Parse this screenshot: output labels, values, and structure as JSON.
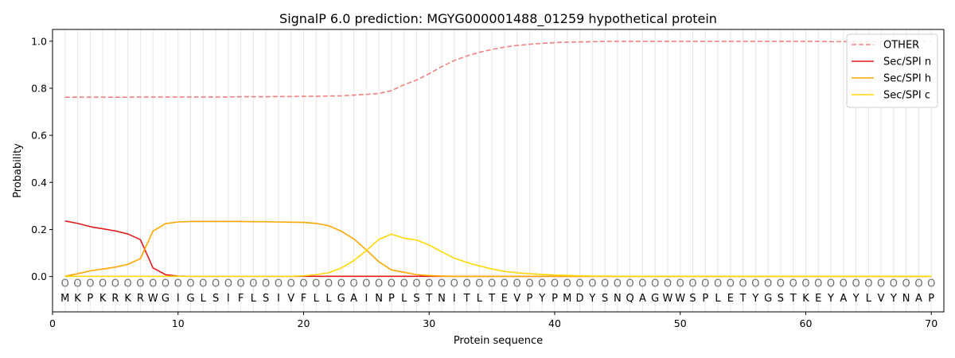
{
  "chart_data": {
    "type": "line",
    "title": "SignalP 6.0 prediction: MGYG000001488_01259 hypothetical protein",
    "xlabel": "Protein sequence",
    "ylabel": "Probability",
    "xlim": [
      0,
      71
    ],
    "ylim": [
      -0.15,
      1.05
    ],
    "x_ticks": [
      0,
      10,
      20,
      30,
      40,
      50,
      60,
      70
    ],
    "y_ticks": [
      0.0,
      0.2,
      0.4,
      0.6,
      0.8,
      1.0
    ],
    "x_tick_labels": [
      "0",
      "10",
      "20",
      "30",
      "40",
      "50",
      "60",
      "70"
    ],
    "y_tick_labels": [
      "0.0",
      "0.2",
      "0.4",
      "0.6",
      "0.8",
      "1.0"
    ],
    "grid": "vertical lines at each residue",
    "legend_position": "top-right",
    "sequence": [
      "M",
      "K",
      "P",
      "K",
      "R",
      "K",
      "R",
      "W",
      "G",
      "I",
      "G",
      "L",
      "S",
      "I",
      "F",
      "L",
      "S",
      "I",
      "V",
      "F",
      "L",
      "L",
      "G",
      "A",
      "I",
      "N",
      "P",
      "L",
      "S",
      "T",
      "N",
      "I",
      "T",
      "L",
      "T",
      "E",
      "V",
      "P",
      "Y",
      "P",
      "M",
      "D",
      "Y",
      "S",
      "N",
      "Q",
      "A",
      "G",
      "W",
      "W",
      "S",
      "P",
      "L",
      "E",
      "T",
      "Y",
      "G",
      "S",
      "T",
      "K",
      "E",
      "Y",
      "A",
      "Y",
      "L",
      "V",
      "Y",
      "N",
      "A",
      "P"
    ],
    "prediction": [
      "O",
      "O",
      "O",
      "O",
      "O",
      "O",
      "O",
      "O",
      "O",
      "O",
      "O",
      "O",
      "O",
      "O",
      "O",
      "O",
      "O",
      "O",
      "O",
      "O",
      "O",
      "O",
      "O",
      "O",
      "O",
      "O",
      "O",
      "O",
      "O",
      "O",
      "O",
      "O",
      "O",
      "O",
      "O",
      "O",
      "O",
      "O",
      "O",
      "O",
      "O",
      "O",
      "O",
      "O",
      "O",
      "O",
      "O",
      "O",
      "O",
      "O",
      "O",
      "O",
      "O",
      "O",
      "O",
      "O",
      "O",
      "O",
      "O",
      "O",
      "O",
      "O",
      "O",
      "O",
      "O",
      "O",
      "O",
      "O",
      "O",
      "O"
    ],
    "x": [
      1,
      2,
      3,
      4,
      5,
      6,
      7,
      8,
      9,
      10,
      11,
      12,
      13,
      14,
      15,
      16,
      17,
      18,
      19,
      20,
      21,
      22,
      23,
      24,
      25,
      26,
      27,
      28,
      29,
      30,
      31,
      32,
      33,
      34,
      35,
      36,
      37,
      38,
      39,
      40,
      41,
      42,
      43,
      44,
      45,
      46,
      47,
      48,
      49,
      50,
      51,
      52,
      53,
      54,
      55,
      56,
      57,
      58,
      59,
      60,
      61,
      62,
      63,
      64,
      65,
      66,
      67,
      68,
      69,
      70
    ],
    "series": [
      {
        "name": "OTHER",
        "color": "#f08080",
        "dash": true,
        "values": [
          0.762,
          0.762,
          0.762,
          0.762,
          0.762,
          0.762,
          0.763,
          0.763,
          0.763,
          0.763,
          0.763,
          0.763,
          0.763,
          0.763,
          0.764,
          0.764,
          0.764,
          0.765,
          0.765,
          0.766,
          0.766,
          0.767,
          0.768,
          0.771,
          0.774,
          0.778,
          0.79,
          0.815,
          0.835,
          0.862,
          0.892,
          0.918,
          0.937,
          0.953,
          0.965,
          0.975,
          0.982,
          0.987,
          0.991,
          0.994,
          0.996,
          0.997,
          0.998,
          0.999,
          0.999,
          0.999,
          0.999,
          0.999,
          0.999,
          0.999,
          0.999,
          0.999,
          0.999,
          0.999,
          0.999,
          0.999,
          0.999,
          0.999,
          0.999,
          0.999,
          0.999,
          0.998,
          0.998,
          0.998,
          0.998,
          0.998,
          0.998,
          0.998,
          0.998,
          0.998
        ]
      },
      {
        "name": "Sec/SPI n",
        "color": "#e31a1c",
        "dash": false,
        "values": [
          0.236,
          0.226,
          0.212,
          0.203,
          0.194,
          0.181,
          0.157,
          0.037,
          0.008,
          0.002,
          0.001,
          0.001,
          0.001,
          0.001,
          0.001,
          0.001,
          0.001,
          0.001,
          0.001,
          0.001,
          0.001,
          0.001,
          0.001,
          0.001,
          0.001,
          0.001,
          0.001,
          0.001,
          0.001,
          0.001,
          0.001,
          0.001,
          0.001,
          0.001,
          0.001,
          0.001,
          0.001,
          0.001,
          0.001,
          0.001,
          0.001,
          0.001,
          0.001,
          0.001,
          0.001,
          0.001,
          0.001,
          0.001,
          0.001,
          0.001,
          0.001,
          0.001,
          0.001,
          0.001,
          0.001,
          0.001,
          0.001,
          0.001,
          0.001,
          0.001,
          0.001,
          0.001,
          0.001,
          0.001,
          0.001,
          0.001,
          0.001,
          0.001,
          0.001,
          0.001
        ]
      },
      {
        "name": "Sec/SPI h",
        "color": "#ffa500",
        "dash": false,
        "values": [
          0.002,
          0.012,
          0.024,
          0.032,
          0.04,
          0.052,
          0.076,
          0.193,
          0.225,
          0.232,
          0.234,
          0.234,
          0.234,
          0.234,
          0.234,
          0.233,
          0.233,
          0.232,
          0.231,
          0.23,
          0.226,
          0.216,
          0.193,
          0.16,
          0.113,
          0.063,
          0.028,
          0.018,
          0.008,
          0.004,
          0.002,
          0.001,
          0.001,
          0.001,
          0.001,
          0.001,
          0.001,
          0.001,
          0.001,
          0.001,
          0.001,
          0.001,
          0.001,
          0.001,
          0.001,
          0.001,
          0.001,
          0.001,
          0.001,
          0.001,
          0.001,
          0.001,
          0.001,
          0.001,
          0.001,
          0.001,
          0.001,
          0.001,
          0.001,
          0.001,
          0.001,
          0.001,
          0.001,
          0.001,
          0.001,
          0.001,
          0.001,
          0.001,
          0.001,
          0.001
        ]
      },
      {
        "name": "Sec/SPI c",
        "color": "#ffd700",
        "dash": false,
        "values": [
          0.001,
          0.001,
          0.001,
          0.001,
          0.001,
          0.001,
          0.001,
          0.001,
          0.001,
          0.001,
          0.001,
          0.001,
          0.001,
          0.001,
          0.001,
          0.001,
          0.001,
          0.001,
          0.001,
          0.003,
          0.008,
          0.016,
          0.036,
          0.068,
          0.11,
          0.158,
          0.18,
          0.163,
          0.155,
          0.134,
          0.105,
          0.078,
          0.06,
          0.045,
          0.032,
          0.022,
          0.016,
          0.012,
          0.009,
          0.006,
          0.005,
          0.003,
          0.002,
          0.002,
          0.001,
          0.001,
          0.001,
          0.001,
          0.001,
          0.001,
          0.001,
          0.001,
          0.001,
          0.001,
          0.001,
          0.001,
          0.001,
          0.001,
          0.001,
          0.001,
          0.001,
          0.001,
          0.001,
          0.001,
          0.001,
          0.001,
          0.001,
          0.001,
          0.001,
          0.001
        ]
      }
    ]
  }
}
